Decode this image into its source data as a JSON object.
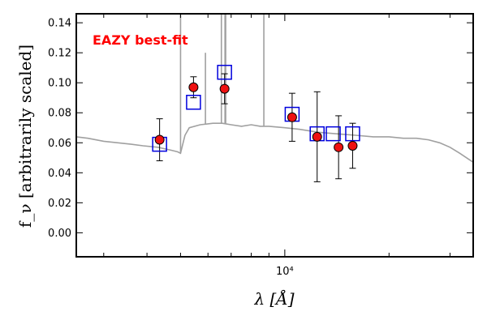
{
  "chart_data": {
    "type": "scatter",
    "title": "",
    "xlabel": "λ [Å]",
    "ylabel": "f_ν [arbitrarily scaled]",
    "x_scale": "log",
    "xlim": [
      2500,
      35000
    ],
    "ylim": [
      -0.016,
      0.146
    ],
    "y_ticks": [
      0.0,
      0.02,
      0.04,
      0.06,
      0.08,
      0.1,
      0.12,
      0.14
    ],
    "y_tick_labels": [
      "0.00",
      "0.02",
      "0.04",
      "0.06",
      "0.08",
      "0.10",
      "0.12",
      "0.14"
    ],
    "x_ticks": [
      10000
    ],
    "x_tick_labels": [
      "10⁴"
    ],
    "grid": false,
    "annotation": {
      "text": "EAZY best-fit",
      "color": "#ff0000"
    },
    "colors": {
      "sed": "#a0a0a0",
      "observed_fill": "#ee1111",
      "model_stroke": "#0000dd",
      "errorbar": "#000000"
    },
    "series": [
      {
        "kind": "errorbar-points",
        "marker": "filled-circle",
        "points": [
          {
            "x": 4350,
            "y": 0.062,
            "err": 0.014
          },
          {
            "x": 5450,
            "y": 0.097,
            "err": 0.007
          },
          {
            "x": 6700,
            "y": 0.096,
            "err": 0.01
          },
          {
            "x": 10500,
            "y": 0.077,
            "err": 0.016
          },
          {
            "x": 12400,
            "y": 0.064,
            "err": 0.03
          },
          {
            "x": 14300,
            "y": 0.057,
            "err": 0.021
          },
          {
            "x": 15700,
            "y": 0.058,
            "err": 0.015
          }
        ]
      },
      {
        "kind": "model-photometry",
        "marker": "open-square",
        "points": [
          {
            "x": 4350,
            "y": 0.059
          },
          {
            "x": 5450,
            "y": 0.087
          },
          {
            "x": 6700,
            "y": 0.107
          },
          {
            "x": 10500,
            "y": 0.079
          },
          {
            "x": 12400,
            "y": 0.066
          },
          {
            "x": 13800,
            "y": 0.066
          },
          {
            "x": 15700,
            "y": 0.066
          }
        ]
      },
      {
        "kind": "sed-line",
        "points": [
          {
            "x": 2500,
            "y": 0.064
          },
          {
            "x": 2700,
            "y": 0.063
          },
          {
            "x": 3000,
            "y": 0.061
          },
          {
            "x": 3300,
            "y": 0.06
          },
          {
            "x": 3600,
            "y": 0.059
          },
          {
            "x": 3900,
            "y": 0.058
          },
          {
            "x": 4300,
            "y": 0.057
          },
          {
            "x": 4700,
            "y": 0.055
          },
          {
            "x": 4900,
            "y": 0.054
          },
          {
            "x": 5000,
            "y": 0.053
          },
          {
            "x": 5150,
            "y": 0.065
          },
          {
            "x": 5300,
            "y": 0.07
          },
          {
            "x": 5700,
            "y": 0.072
          },
          {
            "x": 6200,
            "y": 0.073
          },
          {
            "x": 6600,
            "y": 0.073
          },
          {
            "x": 7000,
            "y": 0.072
          },
          {
            "x": 7500,
            "y": 0.071
          },
          {
            "x": 8000,
            "y": 0.072
          },
          {
            "x": 8500,
            "y": 0.071
          },
          {
            "x": 9000,
            "y": 0.071
          },
          {
            "x": 10000,
            "y": 0.07
          },
          {
            "x": 11000,
            "y": 0.069
          },
          {
            "x": 12500,
            "y": 0.067
          },
          {
            "x": 14000,
            "y": 0.066
          },
          {
            "x": 16000,
            "y": 0.065
          },
          {
            "x": 18000,
            "y": 0.064
          },
          {
            "x": 20000,
            "y": 0.064
          },
          {
            "x": 22000,
            "y": 0.063
          },
          {
            "x": 24000,
            "y": 0.063
          },
          {
            "x": 26000,
            "y": 0.062
          },
          {
            "x": 28000,
            "y": 0.06
          },
          {
            "x": 30000,
            "y": 0.057
          },
          {
            "x": 32000,
            "y": 0.053
          },
          {
            "x": 35000,
            "y": 0.047
          }
        ],
        "emission_lines": [
          {
            "x": 5000,
            "y": 0.146
          },
          {
            "x": 6560,
            "y": 0.146
          },
          {
            "x": 6720,
            "y": 0.146
          },
          {
            "x": 6750,
            "y": 0.146
          },
          {
            "x": 8700,
            "y": 0.146
          },
          {
            "x": 5900,
            "y": 0.12
          }
        ]
      }
    ]
  }
}
